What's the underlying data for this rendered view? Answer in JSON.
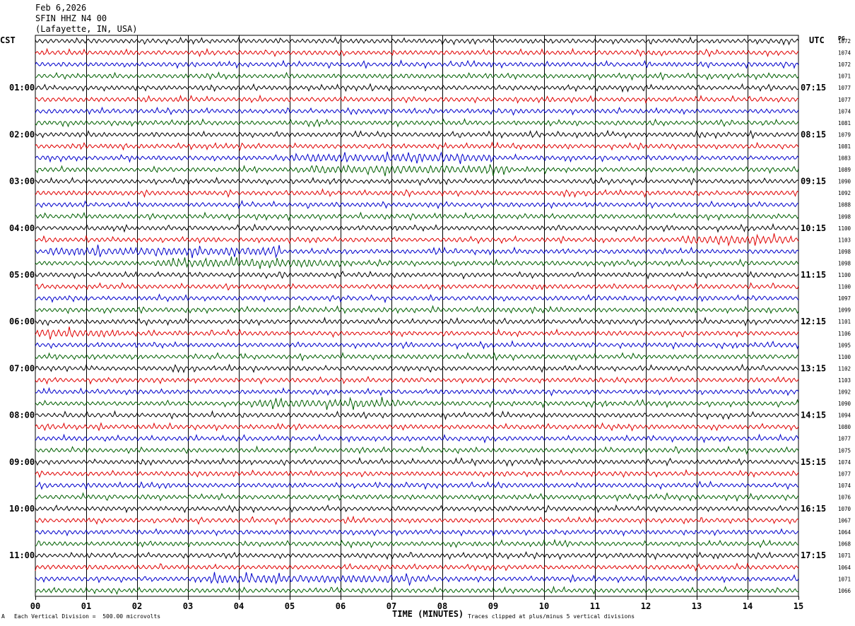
{
  "header": {
    "date": "Feb 6,2026",
    "station": "SFIN HHZ N4 00",
    "location": "(Lafayette, IN, USA)"
  },
  "axes": {
    "left_caption": "CST",
    "right_caption": "UTC",
    "right_edge_caption": "PG",
    "x_title": "TIME (MINUTES)",
    "x_ticks": [
      "00",
      "01",
      "02",
      "03",
      "04",
      "05",
      "06",
      "07",
      "08",
      "09",
      "10",
      "11",
      "12",
      "13",
      "14",
      "15"
    ]
  },
  "footer": {
    "scale_note": "Each Vertical Division =  500.00 microvolts",
    "clip_note": "Traces clipped at plus/minus 5 vertical divisions",
    "corner_mark": "A"
  },
  "colors": {
    "trace_cycle": [
      "#000000",
      "#e00000",
      "#0000cc",
      "#006000"
    ],
    "grid": "#000000"
  },
  "chart_data": {
    "type": "line",
    "title": "",
    "xlabel": "TIME (MINUTES)",
    "ylabel": "",
    "xlim": [
      0,
      15
    ],
    "minutes_per_line": 15,
    "lines_per_hour": 4,
    "left_hour_labels": [
      "01:00",
      "02:00",
      "03:00",
      "04:00",
      "05:00",
      "06:00",
      "07:00",
      "08:00",
      "09:00",
      "10:00",
      "11:00"
    ],
    "right_hour_labels": [
      "07:15",
      "08:15",
      "09:15",
      "10:15",
      "11:15",
      "12:15",
      "13:15",
      "14:15",
      "15:15",
      "16:15",
      "17:15"
    ],
    "hour_label_line_indices": [
      4,
      8,
      12,
      16,
      20,
      24,
      28,
      32,
      36,
      40,
      44
    ],
    "line_values": [
      1072,
      1074,
      1072,
      1071,
      1077,
      1077,
      1074,
      1081,
      1079,
      1081,
      1083,
      1089,
      1090,
      1092,
      1088,
      1098,
      1100,
      1103,
      1098,
      1098,
      1100,
      1100,
      1097,
      1099,
      1101,
      1106,
      1095,
      1100,
      1102,
      1103,
      1092,
      1090,
      1094,
      1080,
      1077,
      1075,
      1074,
      1077,
      1074,
      1076,
      1070,
      1067,
      1064,
      1068,
      1071,
      1064,
      1071,
      1066
    ],
    "traces_count": 48
  }
}
